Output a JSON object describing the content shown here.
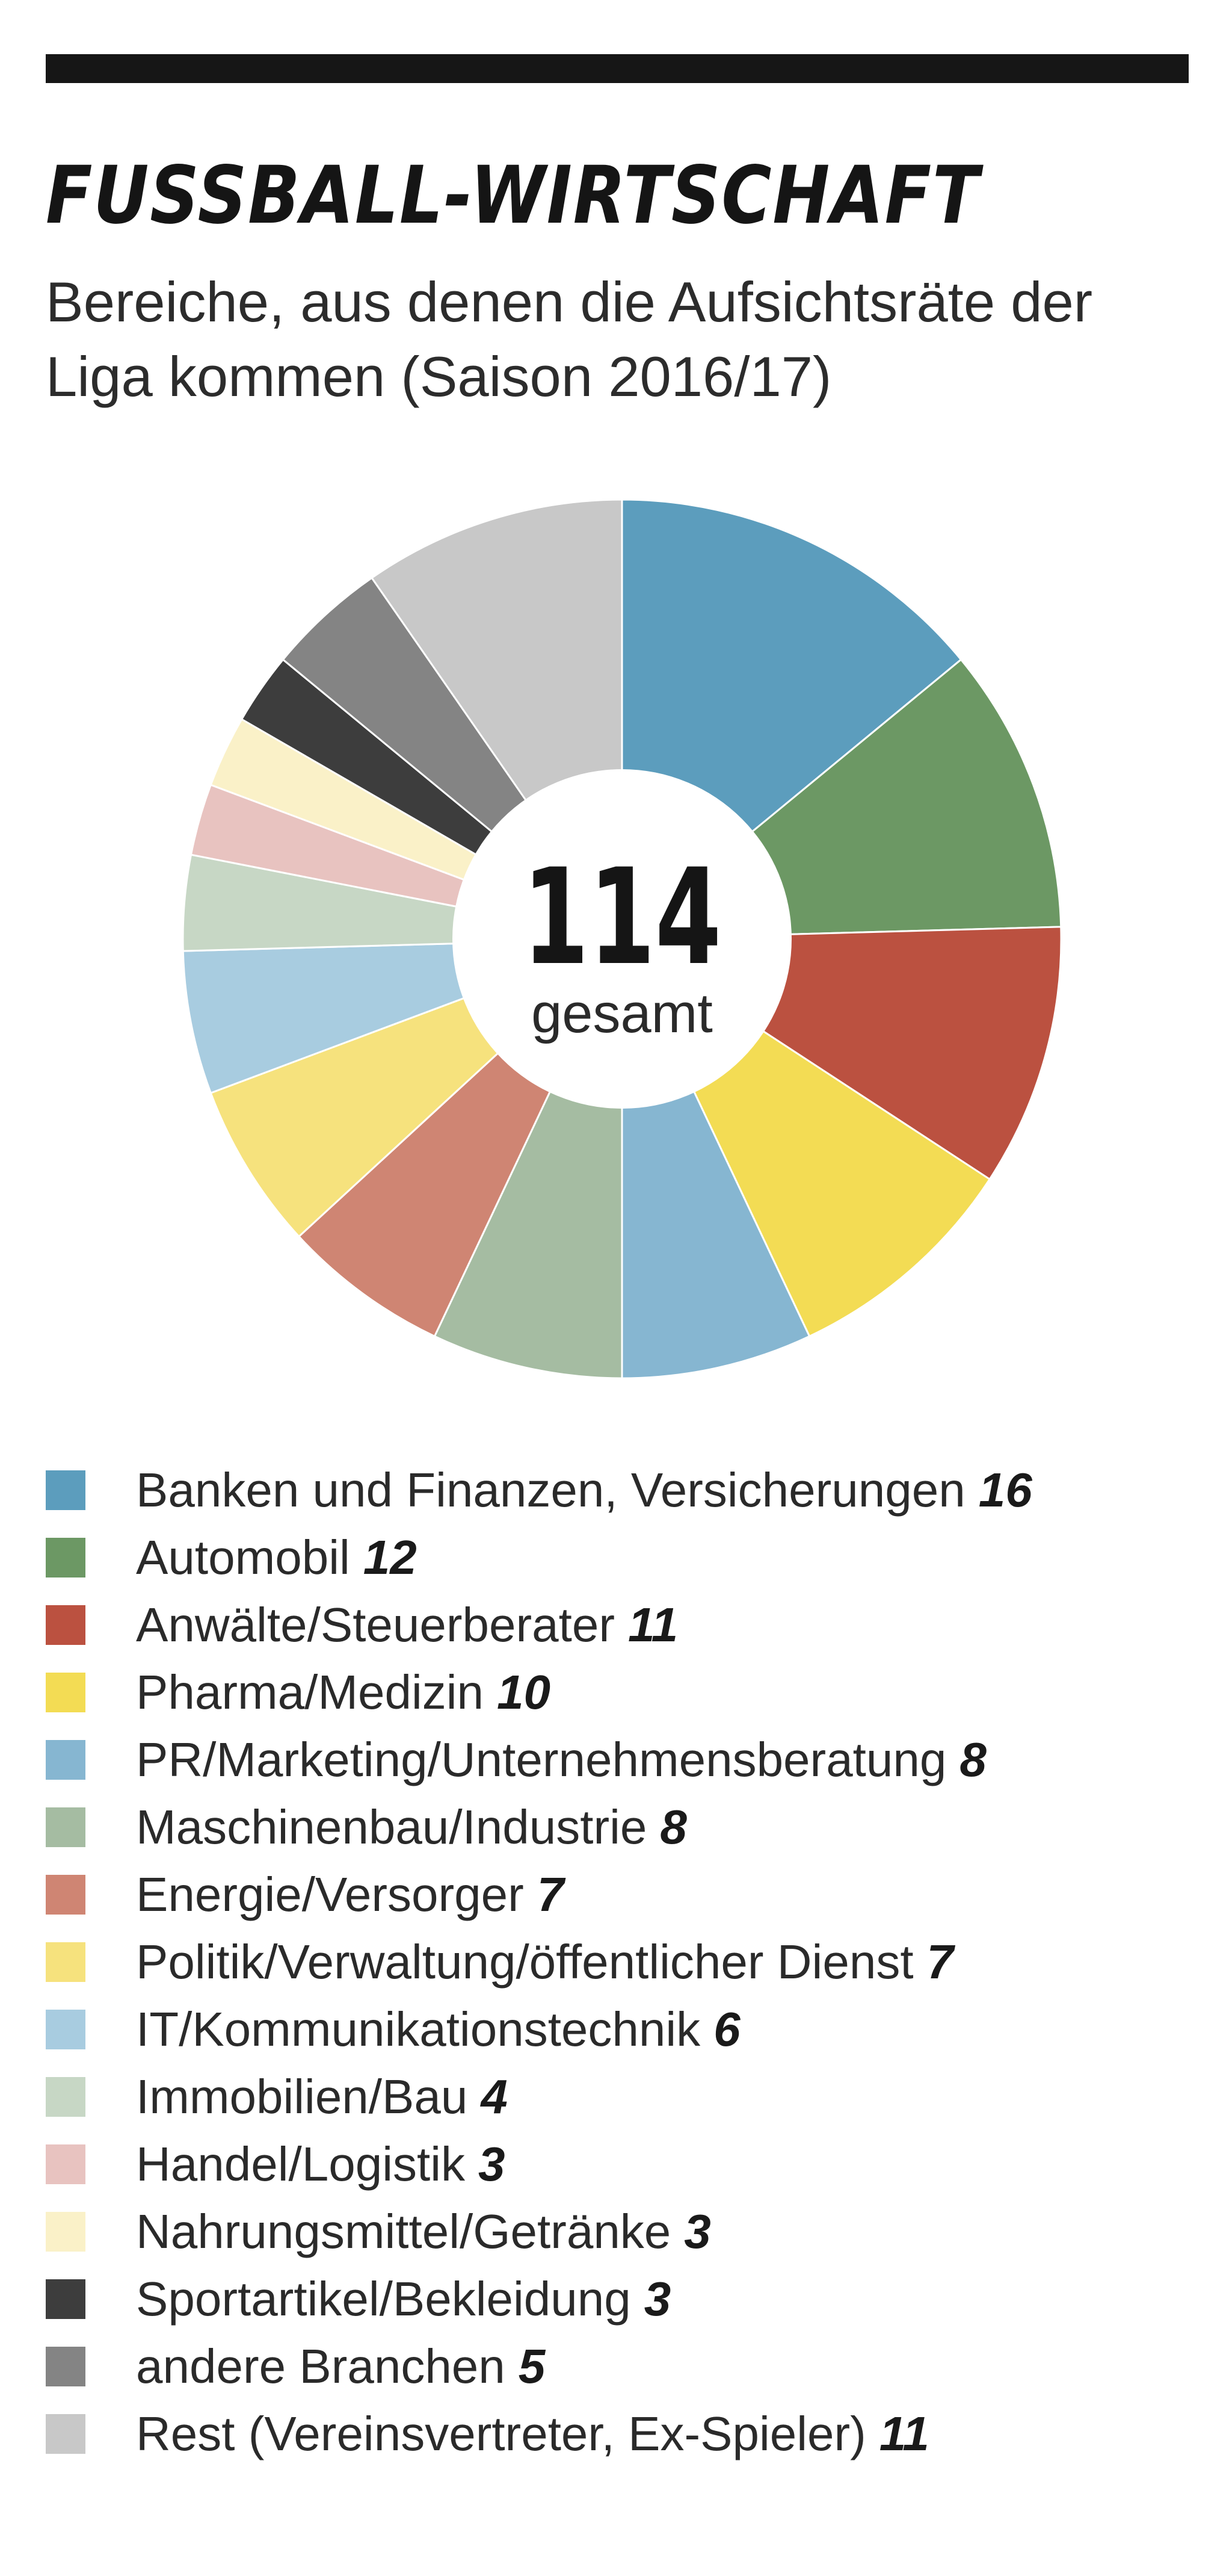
{
  "title": "FUSSBALL-WIRTSCHAFT",
  "subtitle": "Bereiche, aus denen die Aufsichtsräte der Liga kommen (Saison 2016/17)",
  "center": {
    "number": "114",
    "label": "gesamt"
  },
  "chart_data": {
    "type": "pie",
    "donut": true,
    "total": 114,
    "categories": [
      "Banken und Finanzen, Versicherungen",
      "Automobil",
      "Anwälte/Steuerberater",
      "Pharma/Medizin",
      "PR/Marketing/Unternehmensberatung",
      "Maschinenbau/Industrie",
      "Energie/Versorger",
      "Politik/Verwaltung/öffentlicher Dienst",
      "IT/Kommunikationstechnik",
      "Immobilien/Bau",
      "Handel/Logistik",
      "Nahrungsmittel/Getränke",
      "Sportartikel/Bekleidung",
      "andere Branchen",
      "Rest (Vereinsvertreter, Ex-Spieler)"
    ],
    "values": [
      16,
      12,
      11,
      10,
      8,
      8,
      7,
      7,
      6,
      4,
      3,
      3,
      3,
      5,
      11
    ],
    "colors": [
      "#5c9dbd",
      "#6c9864",
      "#bb5140",
      "#f3dc54",
      "#86b6d1",
      "#a5bca2",
      "#cf8573",
      "#f6e27d",
      "#a8cce0",
      "#c7d7c5",
      "#e8c3c0",
      "#faf1c8",
      "#3d3d3d",
      "#848484",
      "#c8c8c8"
    ],
    "legend_position": "bottom"
  }
}
